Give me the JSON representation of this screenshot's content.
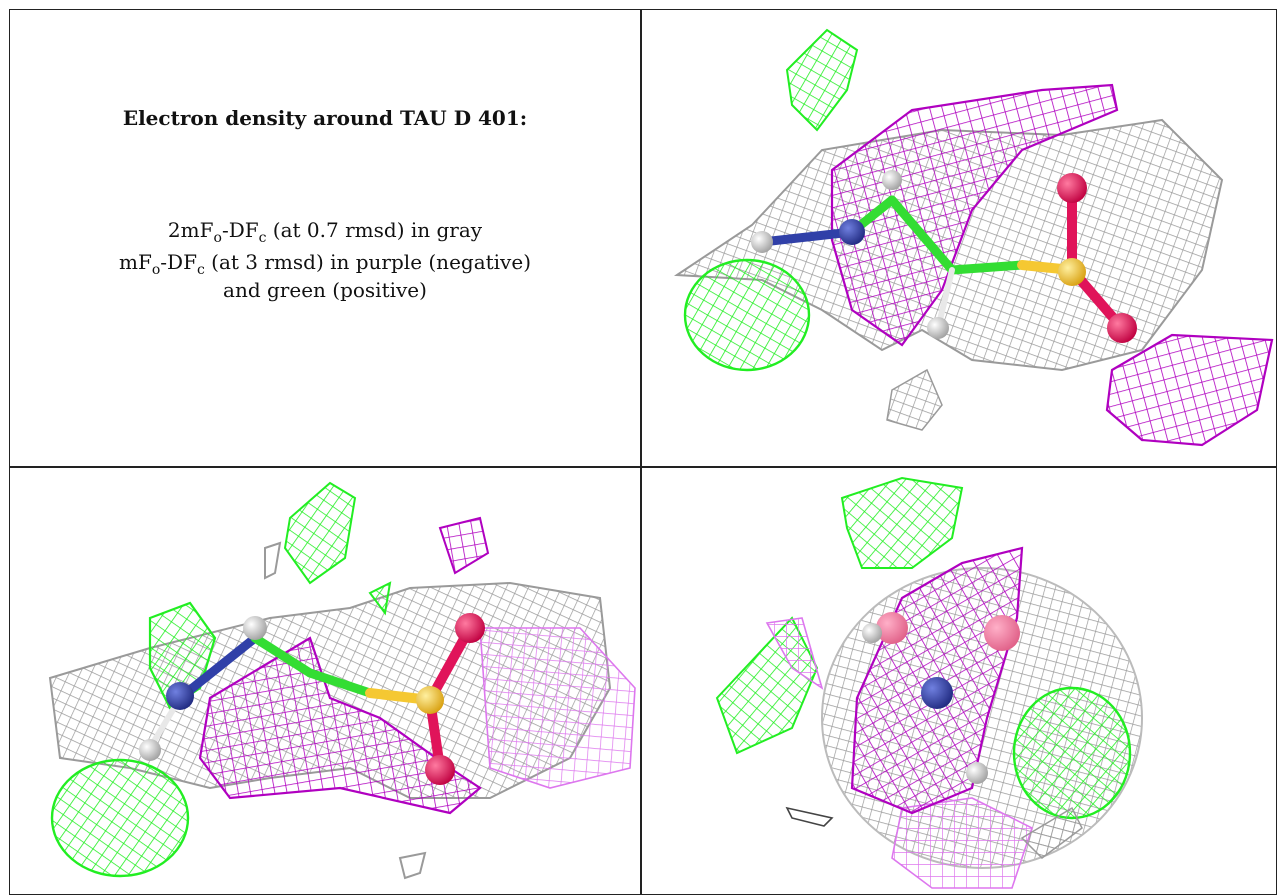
{
  "caption": {
    "title": "Electron density around TAU D 401:",
    "line1": {
      "a": "2mF",
      "a_sub": "o",
      "b": "-DF",
      "b_sub": "c",
      "rest": " (at 0.7 rmsd) in gray"
    },
    "line2": {
      "a": "mF",
      "a_sub": "o",
      "b": "-DF",
      "b_sub": "c",
      "rest": " (at 3 rmsd) in purple (negative)"
    },
    "line3": "and green (positive)"
  },
  "colors": {
    "gray_mesh": "#9a9a9a",
    "purple_mesh": "#b000c0",
    "green_mesh": "#22ee22",
    "oxygen": "#e0145a",
    "sulfur": "#f5c832",
    "nitrogen": "#3040a8",
    "carbon": "#33dd33",
    "hydrogen": "#e8e8e8"
  }
}
